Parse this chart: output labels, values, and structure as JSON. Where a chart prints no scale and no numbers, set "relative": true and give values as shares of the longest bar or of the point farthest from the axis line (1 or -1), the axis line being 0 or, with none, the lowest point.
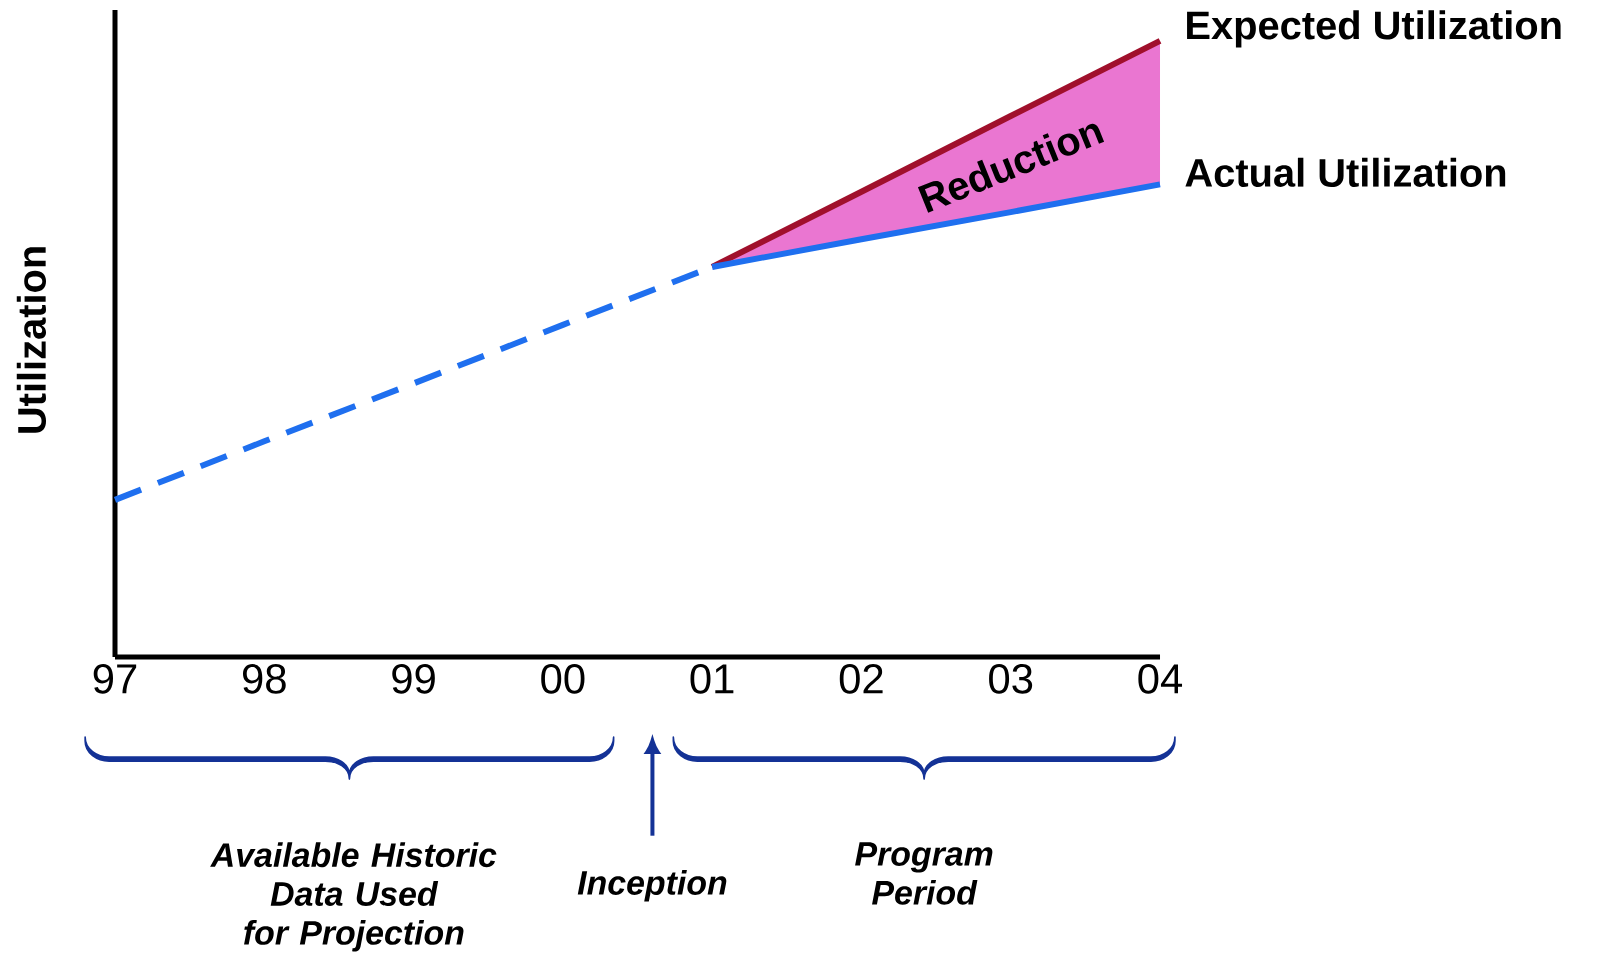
{
  "chart_data": {
    "type": "line",
    "relative": true,
    "ylabel": "Utilization",
    "categories": [
      "97",
      "98",
      "99",
      "00",
      "01",
      "02",
      "03",
      "04"
    ],
    "series": [
      {
        "values": [
          0.255,
          0.35,
          0.444,
          0.539,
          0.633,
          null,
          null,
          null
        ],
        "color": "#1f6fef",
        "line_style": "dashed"
      },
      {
        "name": "Expected Utilization",
        "values": [
          null,
          null,
          null,
          null,
          0.633,
          0.755,
          0.878,
          1.0
        ],
        "color": "#a0102c",
        "line_style": "solid",
        "lower": [
          null,
          null,
          null,
          null,
          0.633,
          0.678,
          0.722,
          0.767
        ],
        "upper": [
          null,
          null,
          null,
          null,
          0.633,
          0.755,
          0.878,
          1.0
        ]
      },
      {
        "name": "Actual Utilization",
        "values": [
          null,
          null,
          null,
          null,
          0.633,
          0.678,
          0.722,
          0.767
        ],
        "color": "#1f6fef",
        "line_style": "solid"
      }
    ],
    "annotations": [
      "Reduction",
      "Available Historic Data Used for Projection",
      "Inception",
      "Program Period"
    ]
  }
}
